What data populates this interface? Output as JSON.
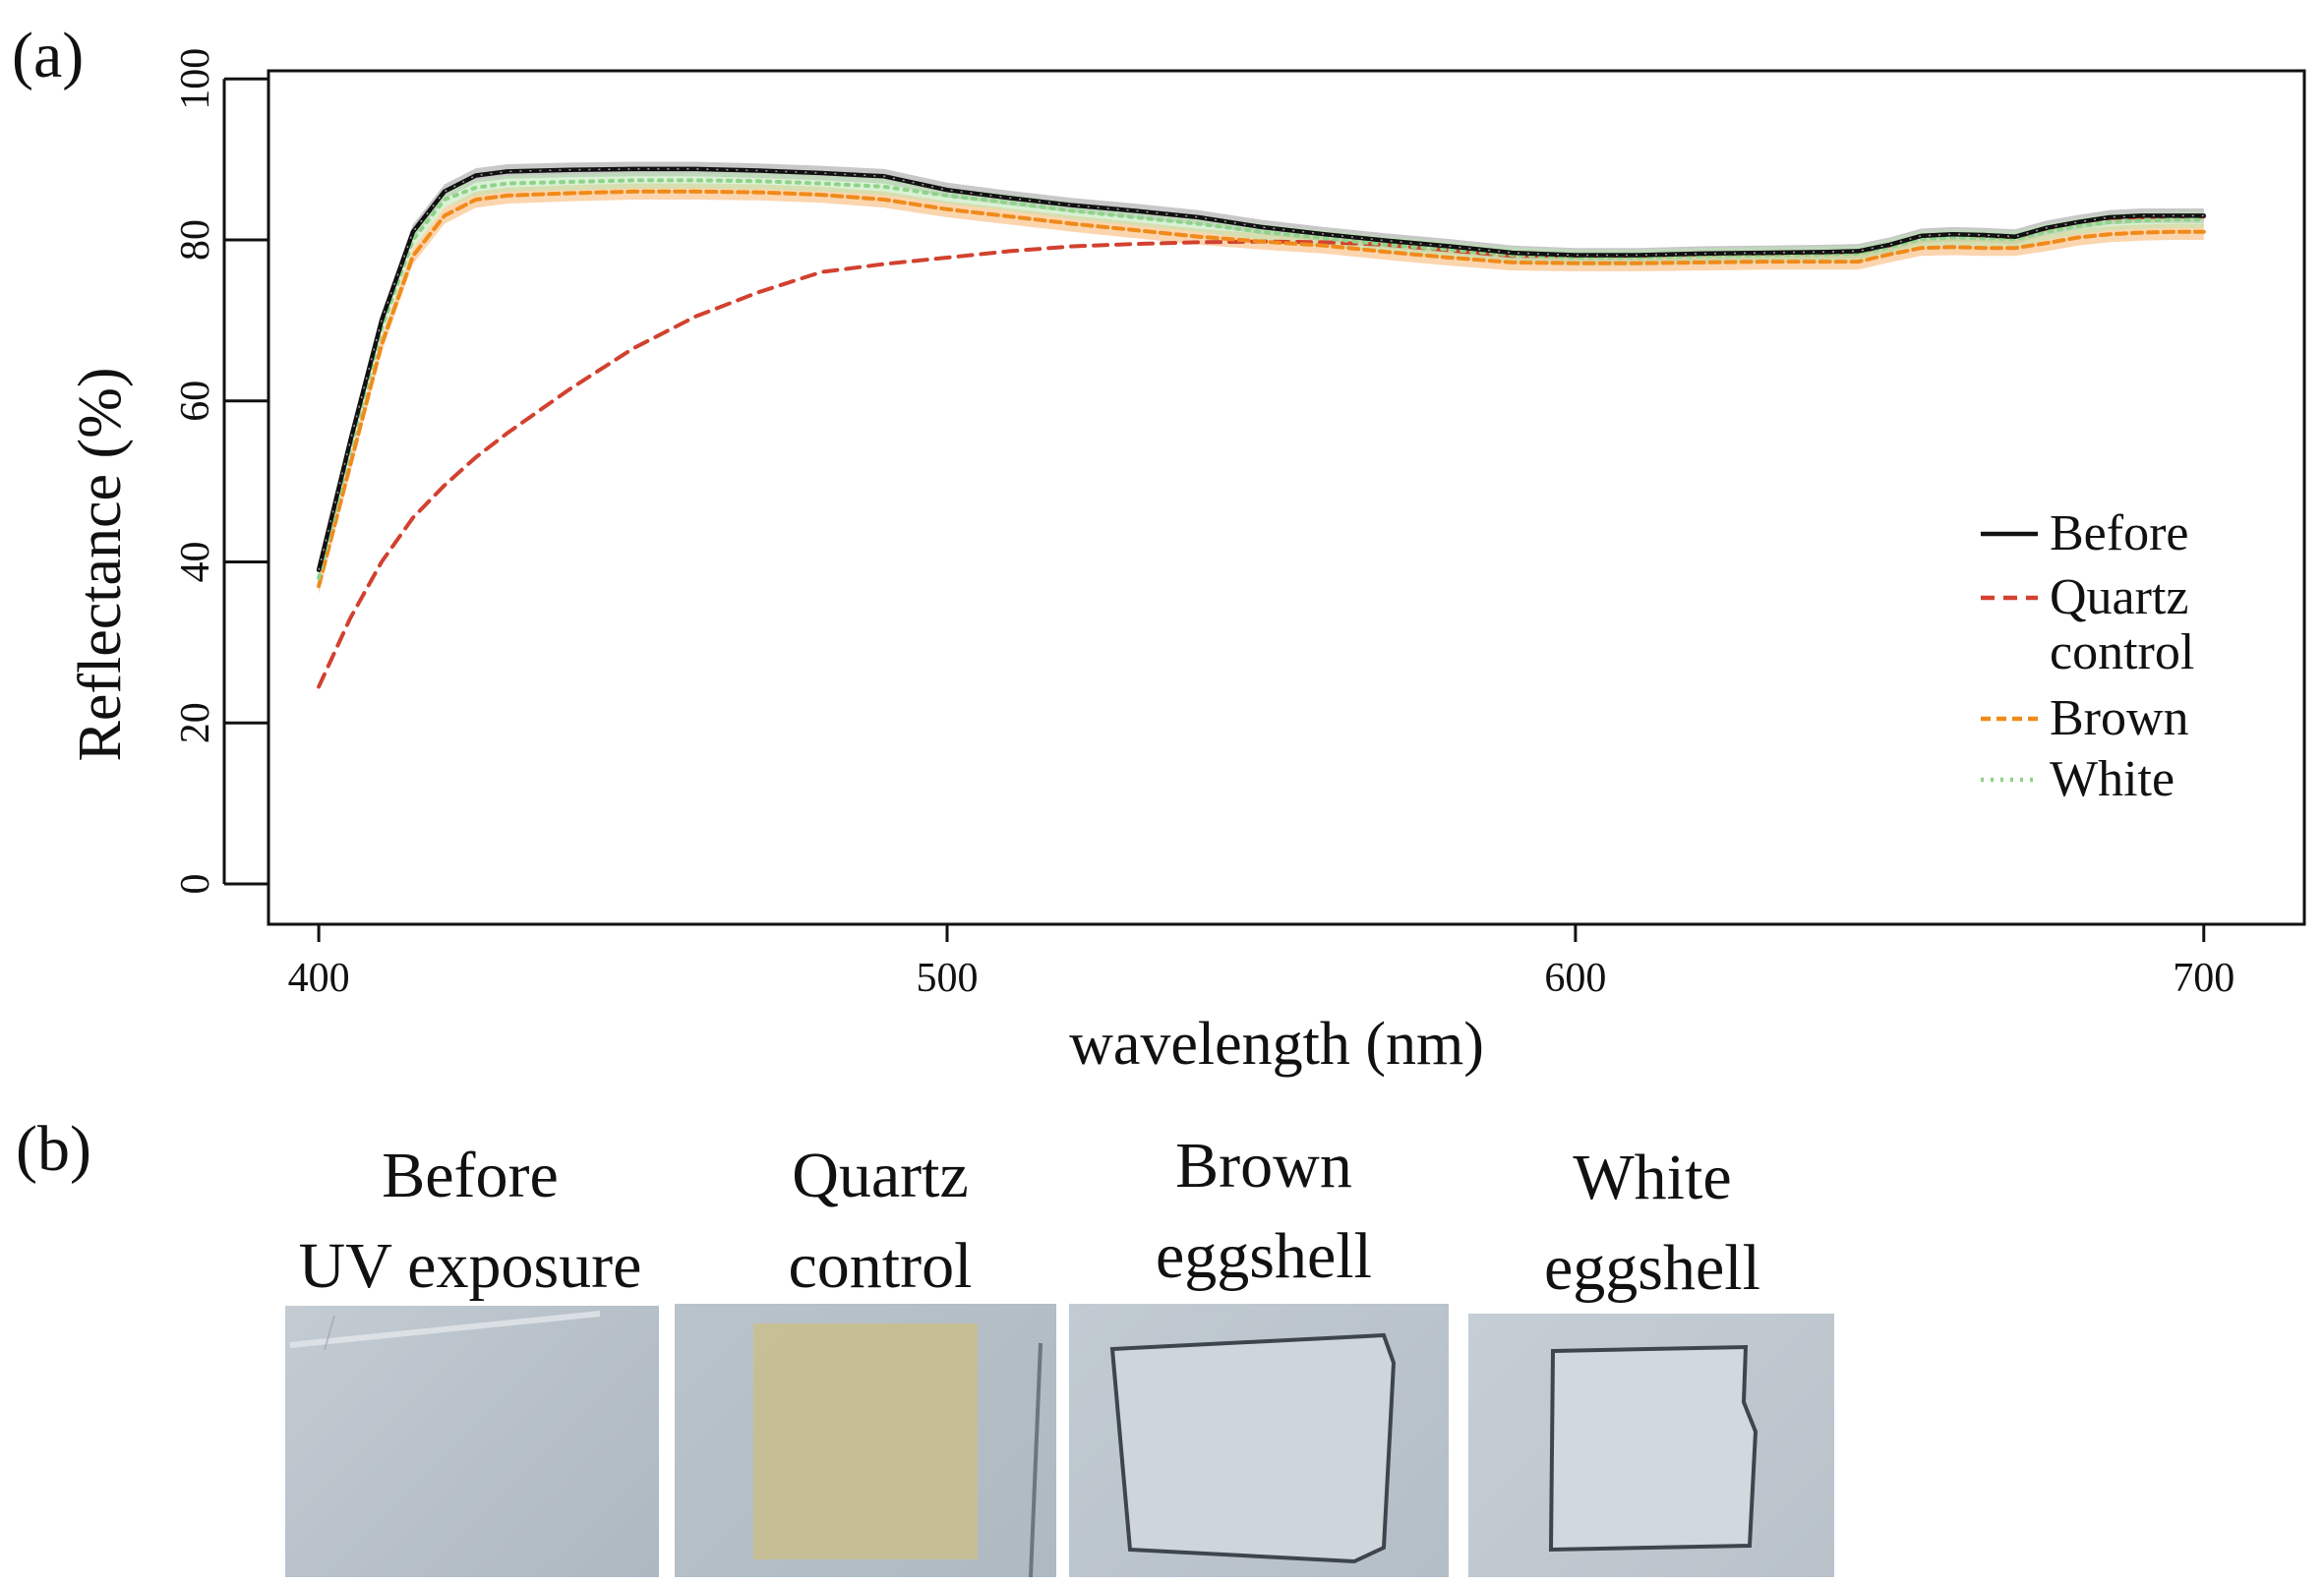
{
  "panel_a_label": "(a)",
  "panel_b_label": "(b)",
  "colors": {
    "before": "#111111",
    "quartz_control": "#d2412f",
    "brown": "#f08a1a",
    "white": "#8fd38a",
    "band_brown": "#f7b36b",
    "band_white": "#b9e6b0",
    "band_before": "#9a9a9a"
  },
  "chart_data": {
    "type": "line",
    "xlabel": "wavelength (nm)",
    "ylabel": "Reflectance (%)",
    "xlim": [
      392,
      716
    ],
    "ylim": [
      -5,
      101
    ],
    "xticks": [
      400,
      500,
      600,
      700
    ],
    "yticks": [
      0,
      20,
      40,
      60,
      80,
      100
    ],
    "grid": false,
    "legend_position": "right",
    "x": [
      400,
      405,
      410,
      415,
      420,
      425,
      430,
      440,
      450,
      460,
      470,
      480,
      490,
      500,
      510,
      520,
      530,
      540,
      550,
      560,
      570,
      580,
      590,
      600,
      610,
      620,
      630,
      640,
      645,
      650,
      655,
      660,
      665,
      670,
      675,
      680,
      685,
      690,
      695,
      700
    ],
    "series": [
      {
        "name": "Before",
        "style": "solid",
        "values": [
          39,
          55,
          70,
          81,
          86,
          88,
          88.5,
          88.7,
          88.8,
          88.8,
          88.6,
          88.3,
          87.9,
          86.2,
          85.2,
          84.3,
          83.6,
          82.8,
          81.6,
          80.7,
          79.9,
          79.2,
          78.4,
          78.1,
          78.1,
          78.3,
          78.4,
          78.5,
          78.6,
          79.4,
          80.5,
          80.7,
          80.6,
          80.4,
          81.5,
          82.2,
          82.8,
          83.0,
          83.0,
          83.0
        ]
      },
      {
        "name": "Quartz control",
        "style": "dashed",
        "values": [
          24.5,
          33,
          40,
          45.5,
          49.5,
          53,
          56,
          61.5,
          66.5,
          70.5,
          73.5,
          76,
          77,
          77.8,
          78.6,
          79.2,
          79.5,
          79.7,
          79.8,
          79.7,
          79.4,
          78.7,
          78.0,
          78.0,
          78.0,
          78.2,
          78.3,
          78.4,
          78.5,
          79.3,
          80.5,
          80.7,
          80.5,
          80.3,
          81.4,
          82.2,
          82.7,
          82.8,
          82.9,
          82.9
        ]
      },
      {
        "name": "Brown",
        "style": "dashed",
        "values": [
          37,
          52,
          67,
          78,
          83,
          85,
          85.5,
          85.8,
          86.0,
          86.0,
          85.9,
          85.6,
          85.0,
          83.8,
          82.9,
          82.0,
          81.2,
          80.4,
          79.8,
          79.3,
          78.5,
          77.8,
          77.2,
          77.1,
          77.1,
          77.2,
          77.3,
          77.3,
          77.3,
          78.2,
          79.0,
          79.1,
          79.0,
          79.0,
          79.6,
          80.3,
          80.7,
          80.9,
          81.0,
          81.0
        ]
      },
      {
        "name": "White",
        "style": "dotted",
        "values": [
          38,
          54,
          69,
          80,
          85,
          86.5,
          87,
          87.2,
          87.4,
          87.4,
          87.3,
          87.0,
          86.6,
          85.5,
          84.6,
          83.6,
          82.8,
          82.0,
          81.0,
          80.2,
          79.4,
          78.8,
          78.1,
          77.8,
          77.8,
          78.0,
          78.1,
          78.2,
          78.3,
          79.1,
          80.1,
          80.3,
          80.2,
          80.1,
          81.0,
          81.7,
          82.2,
          82.4,
          82.5,
          82.5
        ]
      }
    ]
  },
  "legend": [
    {
      "text": "Before",
      "style": "solid",
      "color_key": "before"
    },
    {
      "text": "Quartz",
      "text2": "control",
      "style": "dashed",
      "color_key": "quartz_control"
    },
    {
      "text": "Brown",
      "style": "dashed",
      "color_key": "brown"
    },
    {
      "text": "White",
      "style": "dotted",
      "color_key": "white"
    }
  ],
  "photos": [
    {
      "caption1": "Before",
      "caption2": "UV exposure"
    },
    {
      "caption1": "Quartz",
      "caption2": "control"
    },
    {
      "caption1": "Brown",
      "caption2": "eggshell"
    },
    {
      "caption1": "White",
      "caption2": "eggshell"
    }
  ]
}
